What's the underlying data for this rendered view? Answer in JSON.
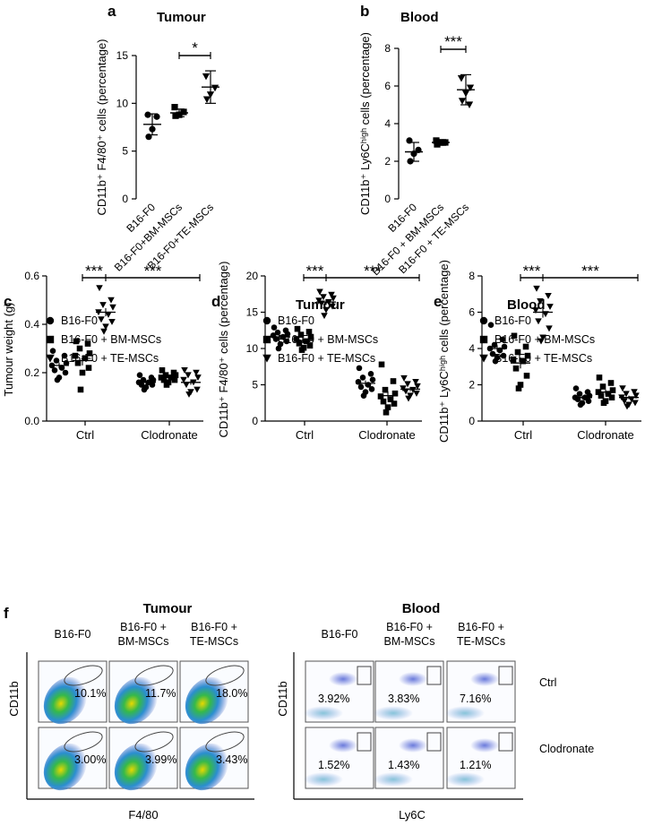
{
  "chart_data": [
    {
      "id": "a",
      "type": "scatter",
      "panel_label": "a",
      "title": "Tumour",
      "ylabel": "CD11b⁺ F4/80⁺ cells (percentage)",
      "ylim": [
        0,
        15
      ],
      "yticks": [
        0,
        5,
        10,
        15
      ],
      "groups": [
        {
          "name": "B16-F0",
          "marker": "circle",
          "values": [
            8.8,
            8.6,
            7.3,
            6.5
          ],
          "mean": 7.8,
          "sd": 1.1
        },
        {
          "name": "B16-F0+BM-MSCs",
          "marker": "square",
          "values": [
            9.6,
            9.1,
            8.8,
            8.7
          ],
          "mean": 9.0,
          "sd": 0.4
        },
        {
          "name": "B16-F0+TE-MSCs",
          "marker": "triangle",
          "values": [
            12.8,
            11.6,
            10.9,
            10.4
          ],
          "mean": 11.7,
          "sd": 1.7
        }
      ],
      "significance": [
        {
          "from": 1,
          "to": 2,
          "label": "*"
        }
      ]
    },
    {
      "id": "b",
      "type": "scatter",
      "panel_label": "b",
      "title": "Blood",
      "ylabel": "CD11b⁺ Ly6Cʰⁱᵍʰ cells (percentage)",
      "ylim": [
        0,
        8
      ],
      "yticks": [
        0,
        2,
        4,
        6,
        8
      ],
      "groups": [
        {
          "name": "B16-F0",
          "marker": "circle",
          "values": [
            3.1,
            2.6,
            2.4,
            2.0
          ],
          "mean": 2.5,
          "sd": 0.5
        },
        {
          "name": "B16-F0 + BM-MSCs",
          "marker": "square",
          "values": [
            3.1,
            3.0,
            3.0,
            2.9
          ],
          "mean": 3.0,
          "sd": 0.15
        },
        {
          "name": "B16-F0 + TE-MSCs",
          "marker": "triangle",
          "values": [
            6.4,
            5.9,
            5.6,
            5.2,
            5.0
          ],
          "mean": 5.8,
          "sd": 0.8
        }
      ],
      "significance": [
        {
          "from": 1,
          "to": 2,
          "label": "***"
        }
      ]
    },
    {
      "id": "c",
      "type": "scatter",
      "panel_label": "c",
      "title": "",
      "ylabel": "Tumour weight (g)",
      "ylim": [
        0,
        0.6
      ],
      "yticks": [
        "0.0",
        "0.2",
        "0.4",
        "0.6"
      ],
      "categories": [
        "Ctrl",
        "Clodronate"
      ],
      "legend": [
        "B16-F0",
        "B16-F0 + BM-MSCs",
        "B16-F0 + TE-MSCs"
      ],
      "series": [
        {
          "name": "B16-F0",
          "marker": "circle",
          "ctrl": [
            0.29,
            0.27,
            0.25,
            0.24,
            0.23,
            0.22,
            0.21,
            0.2,
            0.18,
            0.17
          ],
          "ctrl_mean": 0.23,
          "ctrl_sem": 0.012,
          "clod": [
            0.19,
            0.18,
            0.17,
            0.17,
            0.16,
            0.16,
            0.15,
            0.15,
            0.14,
            0.13
          ],
          "clod_mean": 0.16,
          "clod_sem": 0.008
        },
        {
          "name": "B16-F0 + BM-MSCs",
          "marker": "square",
          "ctrl": [
            0.33,
            0.32,
            0.3,
            0.28,
            0.27,
            0.26,
            0.24,
            0.22,
            0.2,
            0.13
          ],
          "ctrl_mean": 0.25,
          "ctrl_sem": 0.02,
          "clod": [
            0.21,
            0.2,
            0.19,
            0.19,
            0.18,
            0.18,
            0.17,
            0.17,
            0.16,
            0.15
          ],
          "clod_mean": 0.18,
          "clod_sem": 0.006
        },
        {
          "name": "B16-F0 + TE-MSCs",
          "marker": "triangle",
          "ctrl": [
            0.55,
            0.5,
            0.48,
            0.47,
            0.45,
            0.44,
            0.42,
            0.41,
            0.39,
            0.37
          ],
          "ctrl_mean": 0.45,
          "ctrl_sem": 0.017,
          "clod": [
            0.21,
            0.2,
            0.19,
            0.18,
            0.17,
            0.16,
            0.15,
            0.13,
            0.12,
            0.11
          ],
          "clod_mean": 0.16,
          "clod_sem": 0.01
        }
      ],
      "significance": [
        {
          "label": "***",
          "span": "ctrl_bm_te"
        },
        {
          "label": "***",
          "span": "te_ctrl_to_clod"
        }
      ]
    },
    {
      "id": "d",
      "type": "scatter",
      "panel_label": "d",
      "title": "Tumour",
      "ylabel": "CD11b⁺ F4/80⁺ cells (percentage)",
      "ylim": [
        0,
        20
      ],
      "yticks": [
        0,
        5,
        10,
        15,
        20
      ],
      "categories": [
        "Ctrl",
        "Clodronate"
      ],
      "legend": [
        "B16-F0",
        "B16-F0 + BM-MSCs",
        "B16-F0 + TE-MSCs"
      ],
      "series": [
        {
          "name": "B16-F0",
          "marker": "circle",
          "ctrl": [
            12.9,
            12.5,
            12.2,
            12.0,
            11.8,
            11.6,
            11.3,
            11.0,
            10.6,
            10.0
          ],
          "ctrl_mean": 11.6,
          "ctrl_sem": 0.3,
          "clod": [
            7.3,
            6.5,
            6.0,
            5.7,
            5.4,
            5.0,
            4.7,
            4.4,
            4.0,
            3.5
          ],
          "clod_mean": 5.2,
          "clod_sem": 0.4
        },
        {
          "name": "B16-F0 + BM-MSCs",
          "marker": "square",
          "ctrl": [
            12.7,
            12.3,
            11.9,
            11.6,
            11.3,
            11.0,
            10.7,
            10.4,
            10.1,
            9.8
          ],
          "ctrl_mean": 11.1,
          "ctrl_sem": 0.3,
          "clod": [
            7.8,
            5.5,
            4.3,
            3.8,
            3.4,
            3.0,
            2.7,
            2.4,
            1.9,
            1.2
          ],
          "clod_mean": 3.5,
          "clod_sem": 0.6
        },
        {
          "name": "B16-F0 + TE-MSCs",
          "marker": "triangle",
          "ctrl": [
            17.8,
            17.4,
            17.1,
            16.9,
            16.6,
            16.4,
            16.2,
            15.8,
            15.3,
            14.5
          ],
          "ctrl_mean": 16.4,
          "ctrl_sem": 0.4,
          "clod": [
            5.9,
            5.4,
            5.1,
            4.8,
            4.5,
            4.3,
            4.1,
            3.8,
            3.5,
            3.1
          ],
          "clod_mean": 4.4,
          "clod_sem": 0.3
        }
      ],
      "significance": [
        {
          "label": "***",
          "span": "ctrl_bm_te"
        },
        {
          "label": "***",
          "span": "te_ctrl_to_clod"
        }
      ]
    },
    {
      "id": "e",
      "type": "scatter",
      "panel_label": "e",
      "title": "Blood",
      "ylabel": "CD11b⁺ Ly6Cʰⁱᵍʰ cells (percentage)",
      "ylim": [
        0,
        8
      ],
      "yticks": [
        0,
        2,
        4,
        6,
        8
      ],
      "categories": [
        "Ctrl",
        "Clodronate"
      ],
      "legend": [
        "B16-F0",
        "B16-F0 + BM-MSCs",
        "B16-F0 + TE-MSCs"
      ],
      "series": [
        {
          "name": "B16-F0",
          "marker": "circle",
          "ctrl": [
            5.3,
            4.5,
            4.2,
            4.1,
            4.0,
            3.9,
            3.7,
            3.6,
            3.5,
            3.3
          ],
          "ctrl_mean": 4.0,
          "ctrl_sem": 0.17,
          "clod": [
            1.8,
            1.6,
            1.5,
            1.4,
            1.3,
            1.3,
            1.2,
            1.1,
            1.0,
            0.9
          ],
          "clod_mean": 1.3,
          "clod_sem": 0.09
        },
        {
          "name": "B16-F0 + BM-MSCs",
          "marker": "square",
          "ctrl": [
            4.7,
            4.1,
            3.8,
            3.6,
            3.4,
            3.3,
            2.9,
            2.5,
            2.0,
            1.8
          ],
          "ctrl_mean": 3.2,
          "ctrl_sem": 0.3,
          "clod": [
            2.4,
            2.1,
            1.9,
            1.7,
            1.6,
            1.5,
            1.4,
            1.3,
            1.1,
            1.0
          ],
          "clod_mean": 1.6,
          "clod_sem": 0.14
        },
        {
          "name": "B16-F0 + TE-MSCs",
          "marker": "triangle",
          "ctrl": [
            7.3,
            6.9,
            6.6,
            6.3,
            6.1,
            5.9,
            5.5,
            5.1,
            4.6,
            4.4
          ],
          "ctrl_mean": 6.0,
          "ctrl_sem": 0.3,
          "clod": [
            1.8,
            1.6,
            1.5,
            1.4,
            1.3,
            1.2,
            1.1,
            1.0,
            0.9,
            0.8
          ],
          "clod_mean": 1.3,
          "clod_sem": 0.1
        }
      ],
      "significance": [
        {
          "label": "***",
          "span": "ctrl_bm_te"
        },
        {
          "label": "***",
          "span": "te_ctrl_to_clod"
        }
      ]
    }
  ],
  "flow": {
    "panel_label": "f",
    "tumour": {
      "title": "Tumour",
      "columns": [
        [
          "B16-F0"
        ],
        [
          "B16-F0 +",
          "BM-MSCs"
        ],
        [
          "B16-F0 +",
          "TE-MSCs"
        ]
      ],
      "y_axis": "CD11b",
      "x_axis": "F4/80",
      "rows": [
        [
          "10.1%",
          "11.7%",
          "18.0%"
        ],
        [
          "3.00%",
          "3.99%",
          "3.43%"
        ]
      ]
    },
    "blood": {
      "title": "Blood",
      "columns": [
        [
          "B16-F0"
        ],
        [
          "B16-F0 +",
          "BM-MSCs"
        ],
        [
          "B16-F0 +",
          "TE-MSCs"
        ]
      ],
      "y_axis": "CD11b",
      "x_axis": "Ly6C",
      "rows": [
        [
          "3.92%",
          "3.83%",
          "7.16%"
        ],
        [
          "1.52%",
          "1.43%",
          "1.21%"
        ]
      ],
      "row_labels": [
        "Ctrl",
        "Clodronate"
      ]
    }
  }
}
